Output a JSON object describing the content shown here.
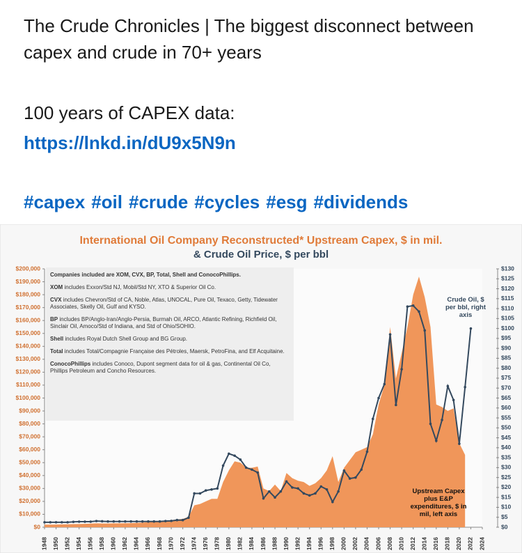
{
  "post": {
    "headline": "The Crude Chronicles | The biggest disconnect between capex and crude in 70+ years",
    "data_line": "100 years of CAPEX data:",
    "link": "https://lnkd.in/dU9x5N9n",
    "hashtags": [
      "#capex",
      "#oil",
      "#crude",
      "#cycles",
      "#esg",
      "#dividends"
    ]
  },
  "chart_data": {
    "type": "area-line",
    "title": "International Oil Company Reconstructed* Upstream Capex, $ in mil.",
    "subtitle": "& Crude Oil Price, $ per bbl",
    "notes": [
      {
        "bold": "Companies included are XOM, CVX, BP, Total, Shell and ConocoPhillips.",
        "text": ""
      },
      {
        "bold": "XOM",
        "text": "includes Exxon/Std NJ, Mobil/Std NY, XTO & Superior Oil Co."
      },
      {
        "bold": "CVX",
        "text": "includes Chevron/Std of CA, Noble, Atlas, UNOCAL, Pure Oil, Texaco, Getty, Tidewater Associates, Skelly Oil, Gulf and KYSO."
      },
      {
        "bold": "BP",
        "text": "includes BP/Anglo-Iran/Anglo-Persia, Burmah Oil, ARCO, Atlantic Refining, Richfield Oil, Sinclair Oil, Amoco/Std of Indiana, and Std of Ohio/SOHIO."
      },
      {
        "bold": "Shell",
        "text": "includes Royal Dutch Shell Group and BG Group."
      },
      {
        "bold": "Total",
        "text": "includes Total/Compagnie Française des Pétroles, Maersk, PetroFina, and Elf Acquitaine."
      },
      {
        "bold": "ConocoPhillips",
        "text": "includes Conoco, Dupont segment data for oil & gas, Continental Oil Co, Phillips Petroleum and Concho Resources."
      }
    ],
    "x": [
      1948,
      1949,
      1950,
      1951,
      1952,
      1953,
      1954,
      1955,
      1956,
      1957,
      1958,
      1959,
      1960,
      1961,
      1962,
      1963,
      1964,
      1965,
      1966,
      1967,
      1968,
      1969,
      1970,
      1971,
      1972,
      1973,
      1974,
      1975,
      1976,
      1977,
      1978,
      1979,
      1980,
      1981,
      1982,
      1983,
      1984,
      1985,
      1986,
      1987,
      1988,
      1989,
      1990,
      1991,
      1992,
      1993,
      1994,
      1995,
      1996,
      1997,
      1998,
      1999,
      2000,
      2001,
      2002,
      2003,
      2004,
      2005,
      2006,
      2007,
      2008,
      2009,
      2010,
      2011,
      2012,
      2013,
      2014,
      2015,
      2016,
      2017,
      2018,
      2019,
      2020,
      2021,
      2022
    ],
    "xlim": [
      1948,
      2024
    ],
    "xticks": [
      1948,
      1950,
      1952,
      1954,
      1956,
      1958,
      1960,
      1962,
      1964,
      1966,
      1968,
      1970,
      1972,
      1974,
      1976,
      1978,
      1980,
      1982,
      1984,
      1986,
      1988,
      1990,
      1992,
      1994,
      1996,
      1998,
      2000,
      2002,
      2004,
      2006,
      2008,
      2010,
      2012,
      2014,
      2016,
      2018,
      2020,
      2022,
      2024
    ],
    "ylim": [
      0,
      200000
    ],
    "yticks": [
      {
        "value": 0,
        "label": "$0"
      },
      {
        "value": 10000,
        "label": "$10,000"
      },
      {
        "value": 20000,
        "label": "$20,000"
      },
      {
        "value": 30000,
        "label": "$30,000"
      },
      {
        "value": 40000,
        "label": "$40,000"
      },
      {
        "value": 50000,
        "label": "$50,000"
      },
      {
        "value": 60000,
        "label": "$60,000"
      },
      {
        "value": 70000,
        "label": "$70,000"
      },
      {
        "value": 80000,
        "label": "$80,000"
      },
      {
        "value": 90000,
        "label": "$90,000"
      },
      {
        "value": 100000,
        "label": "$100,000"
      },
      {
        "value": 110000,
        "label": "$110,000"
      },
      {
        "value": 120000,
        "label": "$120,000"
      },
      {
        "value": 130000,
        "label": "$130,000"
      },
      {
        "value": 140000,
        "label": "$140,000"
      },
      {
        "value": 150000,
        "label": "$150,000"
      },
      {
        "value": 160000,
        "label": "$160,000"
      },
      {
        "value": 170000,
        "label": "$170,000"
      },
      {
        "value": 180000,
        "label": "$180,000"
      },
      {
        "value": 190000,
        "label": "$190,000"
      },
      {
        "value": 200000,
        "label": "$200,000"
      }
    ],
    "y2lim": [
      0,
      130
    ],
    "y2ticks": [
      {
        "value": 0,
        "label": "$0"
      },
      {
        "value": 5,
        "label": "$5"
      },
      {
        "value": 10,
        "label": "$10"
      },
      {
        "value": 15,
        "label": "$15"
      },
      {
        "value": 20,
        "label": "$20"
      },
      {
        "value": 25,
        "label": "$25"
      },
      {
        "value": 30,
        "label": "$30"
      },
      {
        "value": 35,
        "label": "$35"
      },
      {
        "value": 40,
        "label": "$40"
      },
      {
        "value": 45,
        "label": "$45"
      },
      {
        "value": 50,
        "label": "$50"
      },
      {
        "value": 55,
        "label": "$55"
      },
      {
        "value": 60,
        "label": "$60"
      },
      {
        "value": 65,
        "label": "$65"
      },
      {
        "value": 70,
        "label": "$70"
      },
      {
        "value": 75,
        "label": "$75"
      },
      {
        "value": 80,
        "label": "$80"
      },
      {
        "value": 85,
        "label": "$85"
      },
      {
        "value": 90,
        "label": "$90"
      },
      {
        "value": 95,
        "label": "$95"
      },
      {
        "value": 100,
        "label": "$100"
      },
      {
        "value": 105,
        "label": "$105"
      },
      {
        "value": 110,
        "label": "$110"
      },
      {
        "value": 115,
        "label": "$115"
      },
      {
        "value": 120,
        "label": "$120"
      },
      {
        "value": 125,
        "label": "$125"
      },
      {
        "value": 130,
        "label": "$130"
      }
    ],
    "series": [
      {
        "name": "Upstream Capex plus E&P expenditures, $ in mil, left axis",
        "type": "area",
        "color": "#f0965a",
        "values": [
          2000,
          2000,
          2100,
          2200,
          2300,
          2400,
          2500,
          2600,
          2800,
          3000,
          2900,
          2900,
          3000,
          3000,
          3100,
          3200,
          3400,
          3600,
          4000,
          4500,
          5000,
          5200,
          5500,
          6000,
          6500,
          8000,
          17000,
          18000,
          20000,
          22000,
          22000,
          35000,
          44000,
          51000,
          50000,
          46000,
          46000,
          47000,
          30000,
          28000,
          33000,
          28000,
          42000,
          38000,
          36000,
          35000,
          32000,
          34000,
          38000,
          44000,
          55000,
          35000,
          46000,
          52000,
          58000,
          60000,
          62000,
          72000,
          95000,
          110000,
          155000,
          115000,
          135000,
          155000,
          180000,
          194000,
          178000,
          155000,
          95000,
          93000,
          90000,
          92000,
          65000,
          56000,
          null
        ]
      },
      {
        "name": "Crude Oil, $ per bbl, right axis",
        "type": "line",
        "axis": "y2",
        "color": "#34495e",
        "values": [
          2.5,
          2.5,
          2.5,
          2.5,
          2.5,
          2.7,
          2.8,
          2.8,
          2.8,
          3.1,
          3,
          2.9,
          2.9,
          2.9,
          2.9,
          2.9,
          2.9,
          2.9,
          2.9,
          2.9,
          2.9,
          3.1,
          3.2,
          3.6,
          3.6,
          4.8,
          17,
          17,
          18.5,
          19,
          19.5,
          31,
          37,
          36,
          34,
          30,
          29,
          27.5,
          14.5,
          18,
          15,
          18,
          23,
          20,
          19.5,
          17,
          16,
          17,
          20.5,
          19,
          12.7,
          18,
          28.5,
          24.5,
          25,
          29,
          38,
          54.5,
          65,
          72,
          97,
          61.5,
          79.5,
          111,
          111.5,
          108.5,
          99,
          52,
          43.5,
          54,
          71,
          64,
          42,
          70.5,
          100
        ]
      }
    ]
  }
}
